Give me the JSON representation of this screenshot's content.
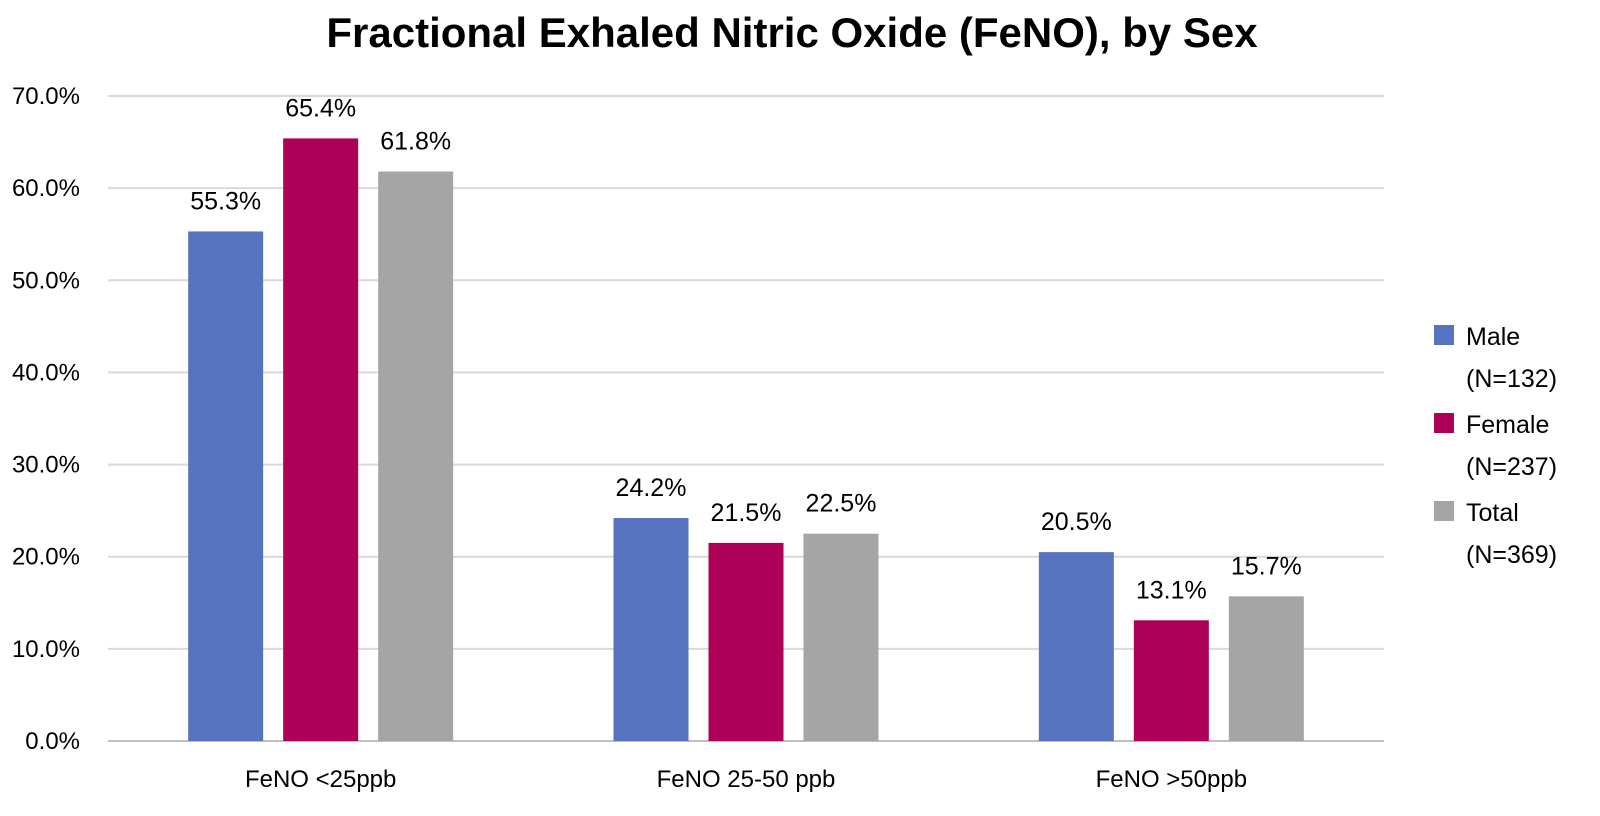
{
  "chart_data": {
    "type": "bar",
    "title": "Fractional Exhaled Nitric Oxide (FeNO), by Sex",
    "xlabel": "",
    "ylabel": "",
    "categories": [
      "FeNO <25ppb",
      "FeNO 25-50 ppb",
      "FeNO >50ppb"
    ],
    "series": [
      {
        "name": "Male",
        "legend_lines": [
          "Male",
          "(N=132)"
        ],
        "color": "#5773c0",
        "values": [
          55.3,
          24.2,
          20.5
        ],
        "labels": [
          "55.3%",
          "24.2%",
          "20.5%"
        ]
      },
      {
        "name": "Female",
        "legend_lines": [
          "Female",
          "(N=237)"
        ],
        "color": "#ad0058",
        "values": [
          65.4,
          21.5,
          13.1
        ],
        "labels": [
          "65.4%",
          "21.5%",
          "13.1%"
        ]
      },
      {
        "name": "Total",
        "legend_lines": [
          "Total",
          "(N=369)"
        ],
        "color": "#a5a5a5",
        "values": [
          61.8,
          22.5,
          15.7
        ],
        "labels": [
          "61.8%",
          "22.5%",
          "15.7%"
        ]
      }
    ],
    "ylim": [
      0,
      70
    ],
    "yticks": [
      0,
      10,
      20,
      30,
      40,
      50,
      60,
      70
    ],
    "ytick_labels": [
      "0.0%",
      "10.0%",
      "20.0%",
      "30.0%",
      "40.0%",
      "50.0%",
      "60.0%",
      "70.0%"
    ],
    "grid": true,
    "legend_position": "right"
  }
}
